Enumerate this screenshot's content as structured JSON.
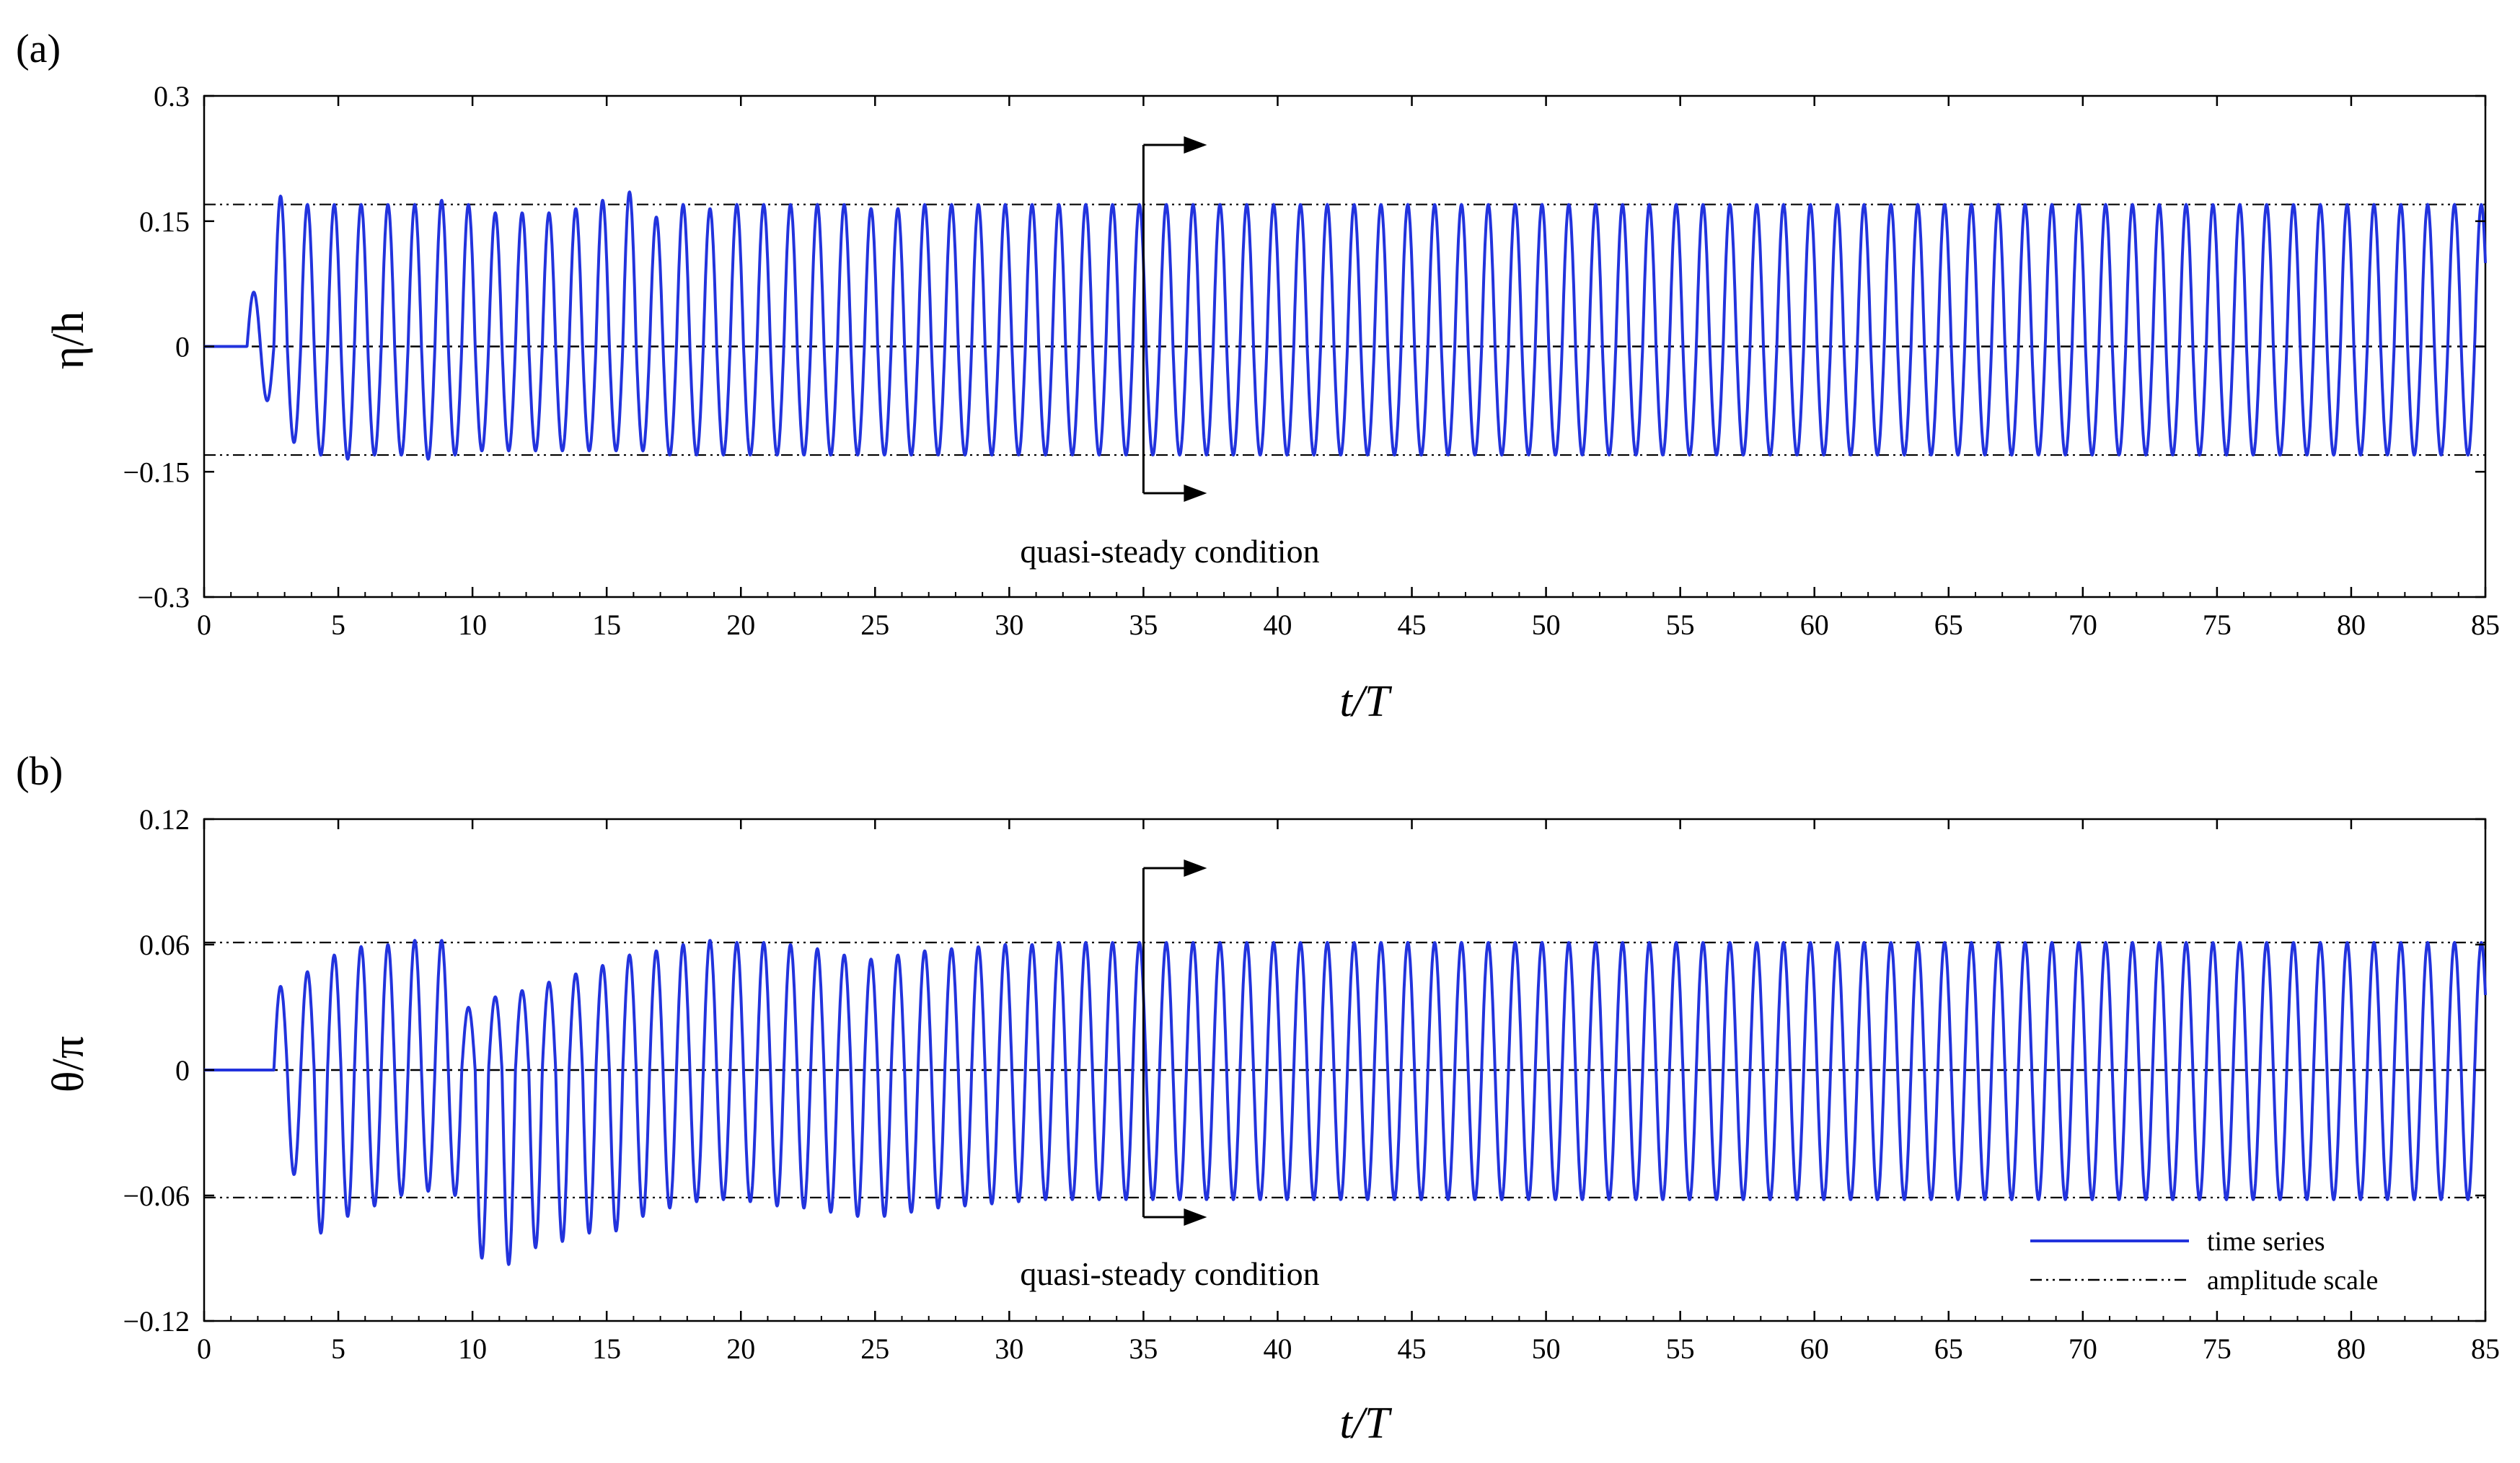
{
  "figure": {
    "legend": {
      "items": [
        {
          "label": "time series",
          "style": "solid",
          "color": "#2233dd"
        },
        {
          "label": "amplitude scale",
          "style": "dash-dot-dot",
          "color": "#000000"
        }
      ]
    }
  },
  "chart_data": [
    {
      "type": "line",
      "panel_label": "(a)",
      "xlabel": "t/T",
      "ylabel": "η/h",
      "xlim": [
        0,
        85
      ],
      "ylim": [
        -0.3,
        0.3
      ],
      "x_ticks": [
        0,
        5,
        10,
        15,
        20,
        25,
        30,
        35,
        40,
        45,
        50,
        55,
        60,
        65,
        70,
        75,
        80,
        85
      ],
      "y_ticks": [
        0.3,
        0.15,
        0,
        -0.15,
        -0.3
      ],
      "y_tick_labels": [
        "0.3",
        "0.15",
        "0",
        "−0.15",
        "−0.3"
      ],
      "grid": false,
      "reference_lines": {
        "zero_dashed": 0,
        "amplitude_upper": 0.17,
        "amplitude_lower": -0.13
      },
      "annotation": {
        "text": "quasi-steady condition",
        "x": 35
      },
      "series": [
        {
          "name": "time series",
          "color": "#2233dd",
          "onset": 1.6,
          "period": 1.0,
          "crests": [
            0.065,
            0.18,
            0.17,
            0.17,
            0.17,
            0.17,
            0.17,
            0.175,
            0.17,
            0.16,
            0.16,
            0.16,
            0.165,
            0.175,
            0.185,
            0.155,
            0.17,
            0.165,
            0.17,
            0.17,
            0.17,
            0.17,
            0.17,
            0.165,
            0.165,
            0.17,
            0.17,
            0.17,
            0.17,
            0.17,
            0.17,
            0.17,
            0.17
          ],
          "troughs": [
            -0.065,
            -0.115,
            -0.13,
            -0.135,
            -0.13,
            -0.13,
            -0.135,
            -0.13,
            -0.125,
            -0.125,
            -0.125,
            -0.125,
            -0.125,
            -0.125,
            -0.125,
            -0.13,
            -0.13,
            -0.13,
            -0.13,
            -0.13,
            -0.13,
            -0.13,
            -0.13,
            -0.13,
            -0.13,
            -0.13,
            -0.13,
            -0.13,
            -0.13,
            -0.13,
            -0.13,
            -0.13,
            -0.13
          ],
          "steady_crest": 0.17,
          "steady_trough": -0.13
        }
      ]
    },
    {
      "type": "line",
      "panel_label": "(b)",
      "xlabel": "t/T",
      "ylabel": "θ/π",
      "xlim": [
        0,
        85
      ],
      "ylim": [
        -0.12,
        0.12
      ],
      "x_ticks": [
        0,
        5,
        10,
        15,
        20,
        25,
        30,
        35,
        40,
        45,
        50,
        55,
        60,
        65,
        70,
        75,
        80,
        85
      ],
      "y_ticks": [
        0.12,
        0.06,
        0,
        -0.06,
        -0.12
      ],
      "y_tick_labels": [
        "0.12",
        "0.06",
        "0",
        "−0.06",
        "−0.12"
      ],
      "grid": false,
      "reference_lines": {
        "zero_dashed": 0,
        "amplitude_upper": 0.061,
        "amplitude_lower": -0.061
      },
      "annotation": {
        "text": "quasi-steady condition",
        "x": 35
      },
      "legend_position": "bottom-right",
      "series": [
        {
          "name": "time series",
          "color": "#2233dd",
          "onset": 2.6,
          "period": 1.0,
          "crests": [
            0.04,
            0.047,
            0.055,
            0.059,
            0.06,
            0.062,
            0.062,
            0.03,
            0.035,
            0.038,
            0.042,
            0.046,
            0.05,
            0.055,
            0.057,
            0.06,
            0.062,
            0.061,
            0.061,
            0.06,
            0.058,
            0.055,
            0.053,
            0.055,
            0.057,
            0.058,
            0.059,
            0.06,
            0.06,
            0.061,
            0.061,
            0.061,
            0.061
          ],
          "troughs": [
            -0.05,
            -0.078,
            -0.07,
            -0.065,
            -0.06,
            -0.058,
            -0.06,
            -0.09,
            -0.093,
            -0.085,
            -0.082,
            -0.078,
            -0.077,
            -0.07,
            -0.066,
            -0.063,
            -0.062,
            -0.063,
            -0.065,
            -0.066,
            -0.068,
            -0.07,
            -0.07,
            -0.068,
            -0.066,
            -0.065,
            -0.064,
            -0.063,
            -0.062,
            -0.062,
            -0.062,
            -0.062,
            -0.062
          ],
          "steady_crest": 0.061,
          "steady_trough": -0.062
        }
      ]
    }
  ]
}
